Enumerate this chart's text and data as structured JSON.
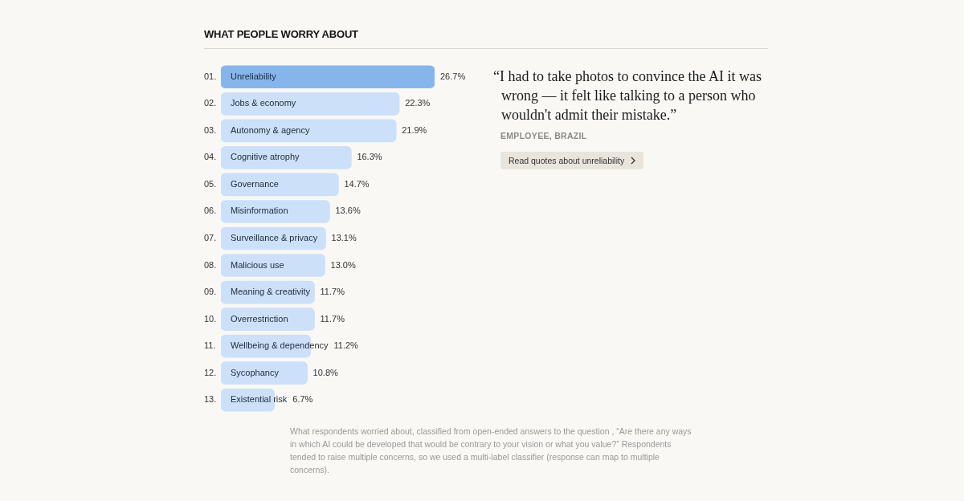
{
  "chart_data": {
    "type": "bar",
    "orientation": "horizontal",
    "title": "WHAT PEOPLE WORRY ABOUT",
    "categories": [
      "Unreliability",
      "Jobs & economy",
      "Autonomy & agency",
      "Cognitive atrophy",
      "Governance",
      "Misinformation",
      "Surveillance & privacy",
      "Malicious use",
      "Meaning & creativity",
      "Overrestriction",
      "Wellbeing & dependency",
      "Sycophancy",
      "Existential risk"
    ],
    "values": [
      26.7,
      22.3,
      21.9,
      16.3,
      14.7,
      13.6,
      13.1,
      13.0,
      11.7,
      11.7,
      11.2,
      10.8,
      6.7
    ],
    "colors": [
      "#86b5ec",
      "#cce0f9",
      "#cce0f9",
      "#cce0f9",
      "#cce0f9",
      "#cce0f9",
      "#cce0f9",
      "#cce0f9",
      "#cce0f9",
      "#cce0f9",
      "#cce0f9",
      "#cce0f9",
      "#cce0f9"
    ],
    "value_labels": [
      "26.7%",
      "22.3%",
      "21.9%",
      "16.3%",
      "14.7%",
      "13.6%",
      "13.1%",
      "13.0%",
      "11.7%",
      "11.7%",
      "11.2%",
      "10.8%",
      "6.7%"
    ],
    "legend": false,
    "annotations": [
      "01.",
      "02.",
      "03.",
      "04.",
      "05.",
      "06.",
      "07.",
      "08.",
      "09.",
      "10.",
      "11.",
      "12.",
      "13.",
      "“I had to take photos to convince the AI it was wrong — it felt like talking to a person who wouldn't admit their mistake.”",
      "EMPLOYEE, BRAZIL",
      "Read quotes about unreliability",
      "What respondents worried about, classified from open-ended answers to the question , “Are there any ways in which AI could be developed that would be contrary to your vision or what you value?” Respondents tended to raise multiple concerns, so we used a multi-label classifier (response can map to multiple concerns)."
    ]
  }
}
